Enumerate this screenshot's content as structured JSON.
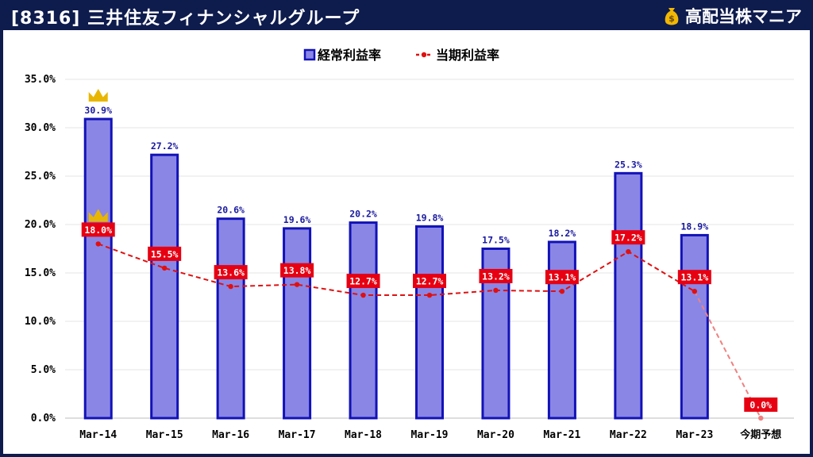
{
  "header": {
    "title": "[8316] 三井住友フィナンシャルグループ",
    "brand": "高配当株マニア",
    "brand_icon": "money-bag-icon"
  },
  "colors": {
    "bar_fill": "#8a86e6",
    "bar_stroke": "#1212b8",
    "line": "#e01010",
    "forecast_line": "#f08080",
    "label_bg": "#e60012",
    "crown": "#e8b600"
  },
  "chart_data": {
    "type": "bar",
    "categories": [
      "Mar-14",
      "Mar-15",
      "Mar-16",
      "Mar-17",
      "Mar-18",
      "Mar-19",
      "Mar-20",
      "Mar-21",
      "Mar-22",
      "Mar-23",
      "今期予想"
    ],
    "series": [
      {
        "name": "経常利益率",
        "type": "bar",
        "values": [
          30.9,
          27.2,
          20.6,
          19.6,
          20.2,
          19.8,
          17.5,
          18.2,
          25.3,
          18.9,
          null
        ],
        "labels": [
          "30.9%",
          "27.2%",
          "20.6%",
          "19.6%",
          "20.2%",
          "19.8%",
          "17.5%",
          "18.2%",
          "25.3%",
          "18.9%",
          ""
        ]
      },
      {
        "name": "当期利益率",
        "type": "line",
        "values": [
          18.0,
          15.5,
          13.6,
          13.8,
          12.7,
          12.7,
          13.2,
          13.1,
          17.2,
          13.1,
          0.0
        ],
        "labels": [
          "18.0%",
          "15.5%",
          "13.6%",
          "13.8%",
          "12.7%",
          "12.7%",
          "13.2%",
          "13.1%",
          "17.2%",
          "13.1%",
          "0.0%"
        ]
      }
    ],
    "yticks": [
      "0.0%",
      "5.0%",
      "10.0%",
      "15.0%",
      "20.0%",
      "25.0%",
      "30.0%",
      "35.0%"
    ],
    "ylim": [
      0,
      35
    ],
    "grid": true,
    "legend_position": "top-center",
    "annotations": [
      {
        "type": "crown-icon",
        "series": "経常利益率",
        "category": "Mar-14"
      },
      {
        "type": "crown-icon",
        "series": "当期利益率",
        "category": "Mar-14"
      }
    ]
  }
}
